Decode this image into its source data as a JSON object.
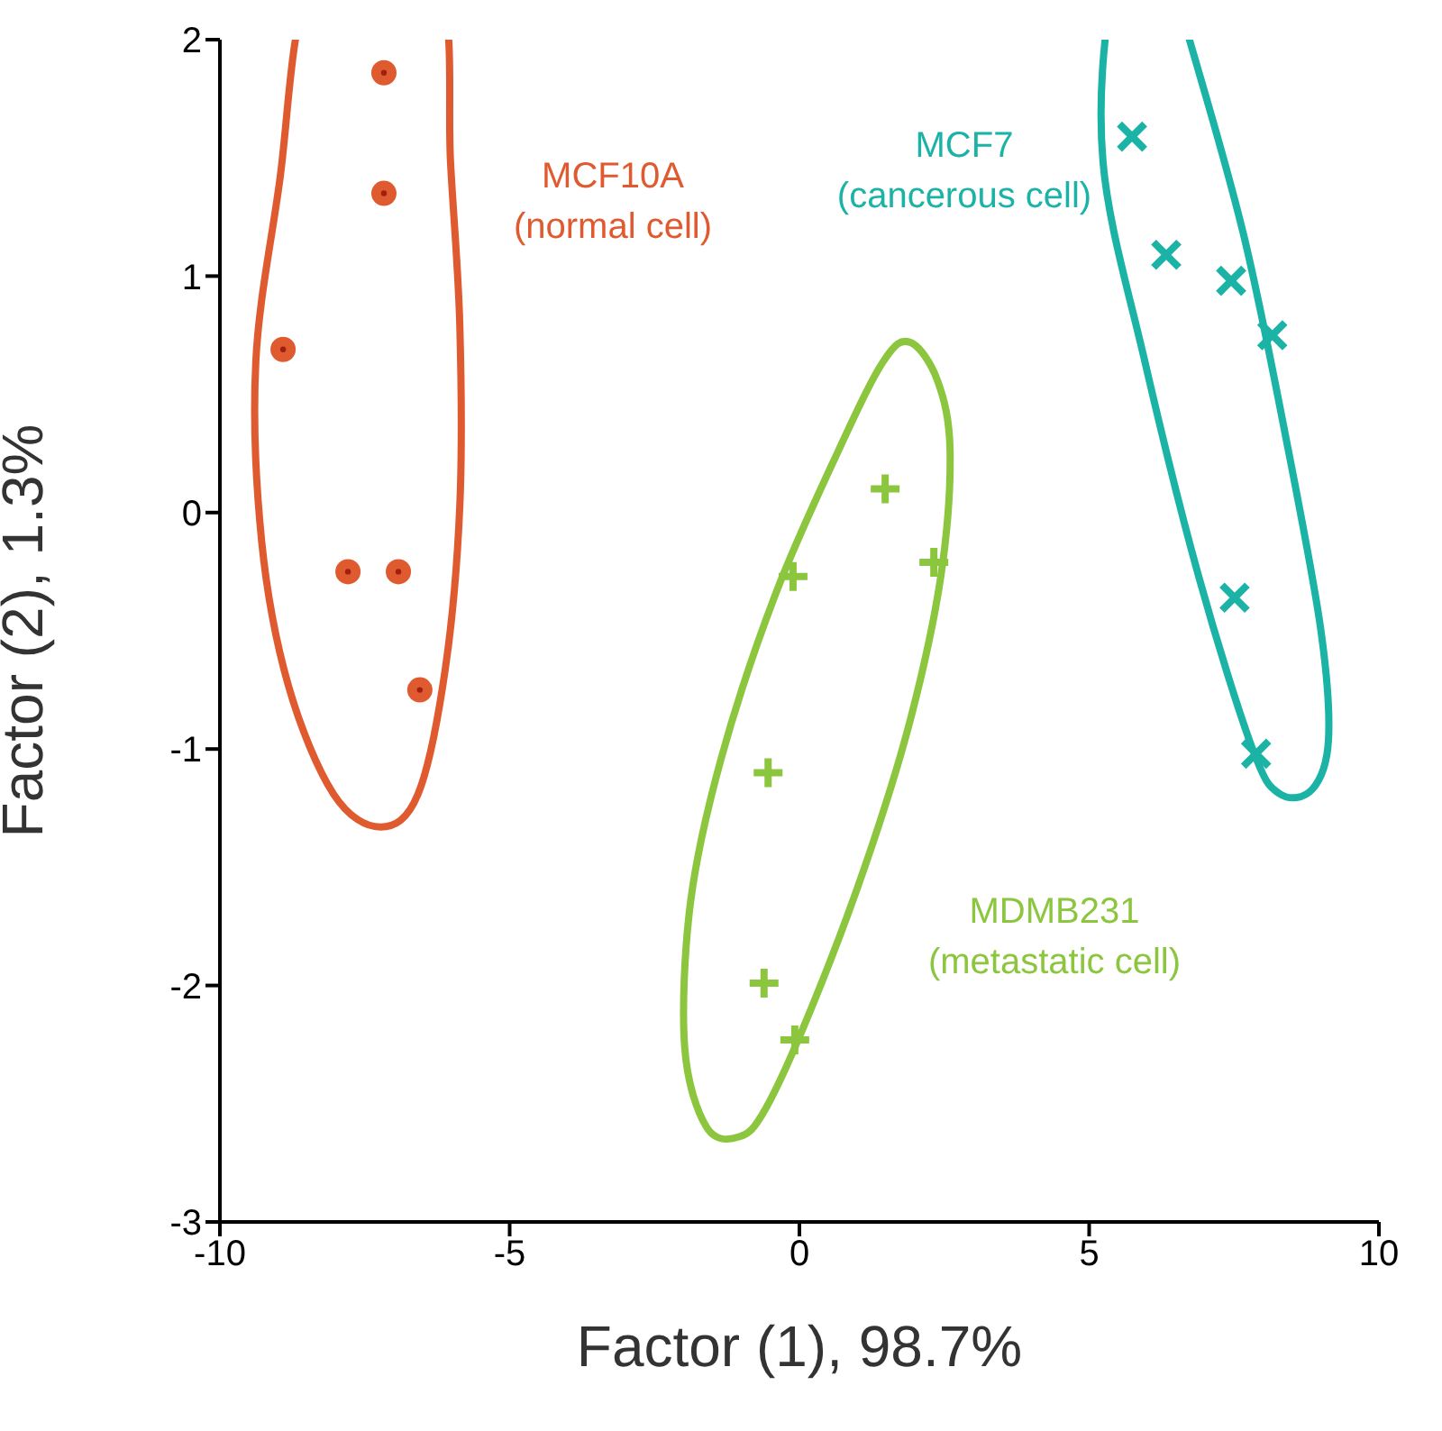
{
  "chart_data": {
    "type": "scatter",
    "xlabel": "Factor (1), 98.7%",
    "ylabel": "Factor (2), 1.3%",
    "xlim": [
      -10,
      10
    ],
    "xticks": [
      -10,
      -5,
      0,
      5,
      10
    ],
    "ylim": [
      -3,
      2
    ],
    "yticks": [
      -3,
      -2,
      -1,
      0,
      1,
      2
    ],
    "legend": false,
    "series": [
      {
        "name": "MCF10A (normal cell)",
        "color": "#e05a30",
        "marker": "circle",
        "x": [
          -8.91,
          -7.17,
          -7.17,
          -7.79,
          -6.92,
          -6.55
        ],
        "values": [
          0.69,
          1.86,
          1.35,
          -0.25,
          -0.25,
          -0.75
        ]
      },
      {
        "name": "MDMB231 (metastatic cell)",
        "color": "#8cc63f",
        "marker": "cross",
        "x": [
          1.48,
          -0.11,
          2.32,
          -0.54,
          -0.61,
          -0.08
        ],
        "values": [
          0.1,
          -0.27,
          -0.21,
          -1.1,
          -1.99,
          -2.23
        ]
      },
      {
        "name": "MCF7 (cancerous cell)",
        "color": "#1ab3a6",
        "marker": "x",
        "x": [
          5.74,
          6.33,
          7.45,
          8.16,
          7.51,
          7.88
        ],
        "values": [
          1.59,
          1.09,
          0.98,
          0.75,
          -0.36,
          -1.02
        ]
      }
    ]
  }
}
